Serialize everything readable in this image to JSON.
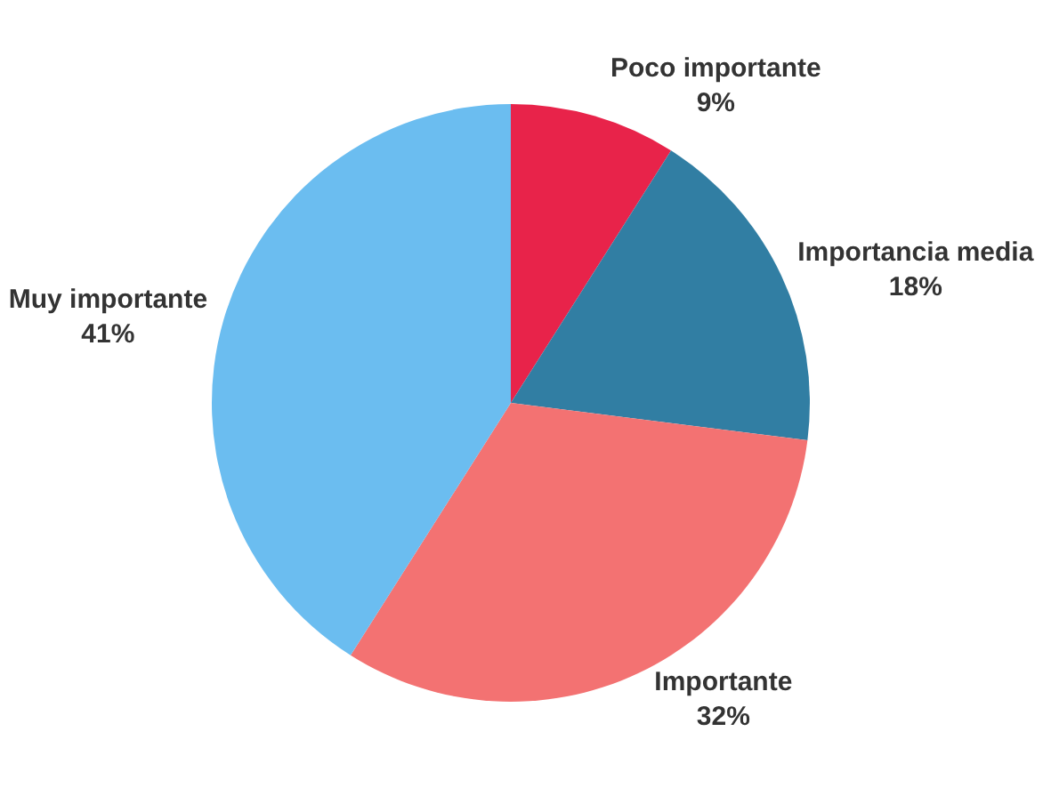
{
  "chart_data": {
    "type": "pie",
    "categories": [
      "Poco importante",
      "Importancia media",
      "Importante",
      "Muy importante"
    ],
    "values": [
      9,
      18,
      32,
      41
    ],
    "value_labels": [
      "9%",
      "18%",
      "32%",
      "41%"
    ],
    "colors": [
      "#e8234a",
      "#317ea3",
      "#f37272",
      "#6bbdf0"
    ],
    "legend": false
  }
}
